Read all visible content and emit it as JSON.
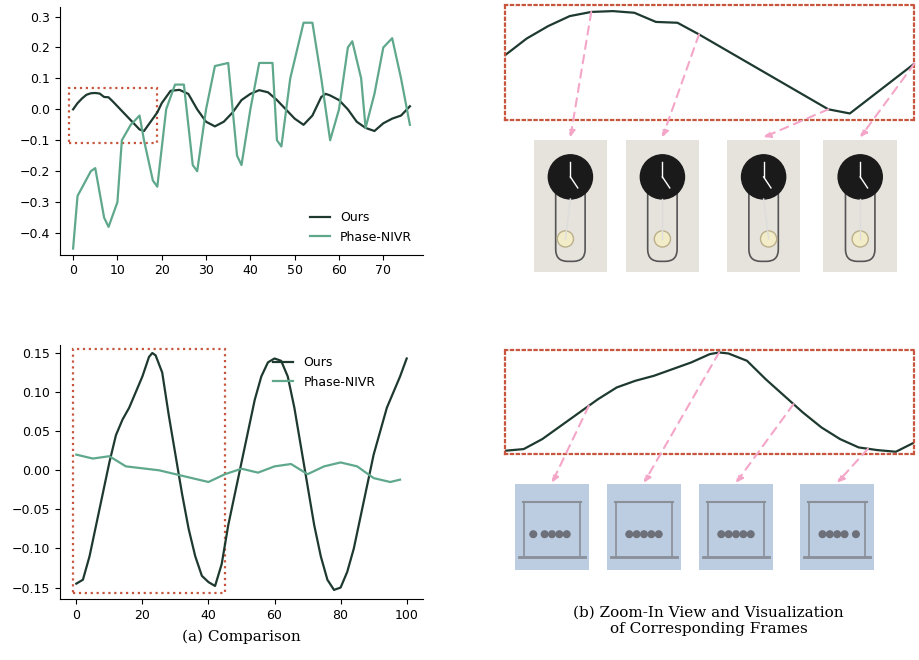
{
  "chart_data": [
    {
      "type": "line",
      "xlim": [
        -3,
        79
      ],
      "ylim": [
        -0.47,
        0.33
      ],
      "xticks": [
        0,
        10,
        20,
        30,
        40,
        50,
        60,
        70
      ],
      "yticks": [
        {
          "value": -0.4,
          "label": "−0.4"
        },
        {
          "value": -0.3,
          "label": "−0.3"
        },
        {
          "value": -0.2,
          "label": "−0.2"
        },
        {
          "value": -0.1,
          "label": "−0.1"
        },
        0.0,
        0.1,
        0.2,
        0.3
      ],
      "legend": "lower right",
      "highlight": {
        "x": [
          -1,
          19
        ],
        "y": [
          -0.11,
          0.07
        ]
      },
      "series": [
        {
          "name": "Ours",
          "color": "#1e3a2f",
          "x": [
            0,
            1,
            2,
            3,
            4,
            5,
            6,
            7,
            8,
            9,
            10,
            11,
            12,
            13,
            14,
            15,
            16,
            17,
            18,
            19,
            20,
            22,
            24,
            26,
            28,
            30,
            32,
            34,
            36,
            38,
            40,
            42,
            44,
            46,
            48,
            50,
            52,
            54,
            56,
            57,
            58,
            60,
            62,
            64,
            66,
            68,
            70,
            72,
            74,
            76
          ],
          "values": [
            0.0,
            0.02,
            0.035,
            0.047,
            0.052,
            0.053,
            0.051,
            0.04,
            0.039,
            0.025,
            0.01,
            -0.005,
            -0.02,
            -0.035,
            -0.05,
            -0.065,
            -0.07,
            -0.05,
            -0.03,
            -0.01,
            0.02,
            0.06,
            0.063,
            0.05,
            0.0,
            -0.04,
            -0.055,
            -0.04,
            -0.01,
            0.03,
            0.05,
            0.062,
            0.055,
            0.03,
            0.0,
            -0.03,
            -0.05,
            -0.02,
            0.04,
            0.05,
            0.045,
            0.03,
            0.0,
            -0.04,
            -0.06,
            -0.07,
            -0.045,
            -0.03,
            -0.02,
            0.01
          ]
        },
        {
          "name": "Phase-NIVR",
          "color": "#5fa88c",
          "x": [
            0,
            1,
            4,
            5,
            7,
            8,
            10,
            11,
            13,
            15,
            16,
            18,
            19,
            21,
            23,
            25,
            26,
            27,
            28,
            30,
            32,
            35,
            36,
            37,
            38,
            40,
            42,
            45,
            46,
            47,
            49,
            52,
            54,
            56,
            57,
            58,
            60,
            62,
            63,
            65,
            66,
            68,
            70,
            72,
            74,
            76
          ],
          "values": [
            -0.45,
            -0.28,
            -0.2,
            -0.19,
            -0.35,
            -0.38,
            -0.3,
            -0.1,
            -0.05,
            -0.02,
            -0.1,
            -0.23,
            -0.25,
            0.0,
            0.08,
            0.08,
            -0.05,
            -0.18,
            -0.2,
            0.0,
            0.14,
            0.15,
            0.0,
            -0.15,
            -0.18,
            0.0,
            0.15,
            0.15,
            -0.1,
            -0.12,
            0.1,
            0.28,
            0.28,
            0.1,
            0.0,
            -0.1,
            0.0,
            0.2,
            0.22,
            0.1,
            -0.06,
            0.05,
            0.2,
            0.23,
            0.1,
            -0.05
          ]
        }
      ]
    },
    {
      "type": "line",
      "xlim": [
        -5,
        105
      ],
      "ylim": [
        -0.165,
        0.16
      ],
      "xticks": [
        0,
        20,
        40,
        60,
        80,
        100
      ],
      "yticks": [
        {
          "value": -0.15,
          "label": "−0.15"
        },
        {
          "value": -0.1,
          "label": "−0.10"
        },
        {
          "value": -0.05,
          "label": "−0.05"
        },
        {
          "value": 0.0,
          "label": "0.00"
        },
        {
          "value": 0.05,
          "label": "0.05"
        },
        {
          "value": 0.1,
          "label": "0.10"
        },
        {
          "value": 0.15,
          "label": "0.15"
        }
      ],
      "legend": "upper right",
      "highlight": {
        "x": [
          -1,
          45
        ],
        "y": [
          -0.157,
          0.155
        ]
      },
      "series": [
        {
          "name": "Ours",
          "color": "#1e3a2f",
          "x": [
            0,
            2,
            4,
            6,
            8,
            10,
            12,
            14,
            16,
            18,
            20,
            22,
            23,
            24,
            26,
            28,
            30,
            32,
            34,
            36,
            38,
            40,
            42,
            44,
            46,
            48,
            50,
            52,
            54,
            56,
            58,
            60,
            62,
            64,
            66,
            68,
            70,
            72,
            74,
            76,
            78,
            80,
            82,
            84,
            86,
            88,
            90,
            92,
            94,
            96,
            98,
            100
          ],
          "values": [
            -0.145,
            -0.14,
            -0.11,
            -0.07,
            -0.03,
            0.01,
            0.045,
            0.065,
            0.08,
            0.1,
            0.12,
            0.145,
            0.15,
            0.147,
            0.125,
            0.07,
            0.02,
            -0.03,
            -0.075,
            -0.11,
            -0.135,
            -0.143,
            -0.148,
            -0.12,
            -0.07,
            -0.03,
            0.01,
            0.05,
            0.09,
            0.12,
            0.138,
            0.143,
            0.14,
            0.12,
            0.08,
            0.03,
            -0.02,
            -0.07,
            -0.11,
            -0.14,
            -0.153,
            -0.15,
            -0.13,
            -0.1,
            -0.06,
            -0.02,
            0.02,
            0.05,
            0.08,
            0.1,
            0.12,
            0.143
          ]
        },
        {
          "name": "Phase-NIVR",
          "color": "#5fa88c",
          "x": [
            0,
            5,
            10,
            15,
            25,
            30,
            40,
            45,
            50,
            55,
            60,
            65,
            70,
            75,
            80,
            85,
            90,
            95,
            98
          ],
          "values": [
            0.02,
            0.015,
            0.018,
            0.005,
            0.0,
            -0.005,
            -0.015,
            -0.005,
            0.002,
            -0.003,
            0.005,
            0.008,
            -0.005,
            0.005,
            0.01,
            0.005,
            -0.01,
            -0.015,
            -0.012
          ]
        }
      ]
    },
    {
      "type": "line",
      "tick_labels": false,
      "xlim": [
        0,
        19
      ],
      "ylim": [
        -0.078,
        0.06
      ],
      "frame_x": [
        4,
        9,
        15,
        19
      ],
      "series": [
        {
          "color": "#1e3a2f",
          "x": [
            0,
            1,
            2,
            3,
            4,
            5,
            6,
            7,
            8,
            9,
            10,
            11,
            12,
            13,
            14,
            15,
            16,
            17,
            18,
            19
          ],
          "values": [
            0.0,
            0.02,
            0.035,
            0.047,
            0.052,
            0.053,
            0.051,
            0.04,
            0.039,
            0.025,
            0.01,
            -0.005,
            -0.02,
            -0.035,
            -0.05,
            -0.065,
            -0.07,
            -0.05,
            -0.03,
            -0.01
          ]
        }
      ]
    },
    {
      "type": "line",
      "tick_labels": false,
      "xlim": [
        0,
        44
      ],
      "ylim": [
        -0.155,
        0.158
      ],
      "frame_x": [
        9,
        23,
        31,
        39
      ],
      "series": [
        {
          "color": "#1e3a2f",
          "x": [
            0,
            2,
            4,
            6,
            8,
            10,
            12,
            14,
            16,
            18,
            20,
            22,
            23,
            24,
            26,
            28,
            30,
            32,
            34,
            36,
            38,
            40,
            42,
            44
          ],
          "values": [
            -0.145,
            -0.14,
            -0.11,
            -0.07,
            -0.03,
            0.01,
            0.045,
            0.065,
            0.08,
            0.1,
            0.12,
            0.145,
            0.15,
            0.147,
            0.125,
            0.07,
            0.02,
            -0.03,
            -0.075,
            -0.11,
            -0.135,
            -0.143,
            -0.148,
            -0.12
          ]
        }
      ]
    }
  ],
  "captions": [
    "(a) Comparison",
    "(b) Zoom-In View and Visualization\nof Corresponding Frames"
  ]
}
